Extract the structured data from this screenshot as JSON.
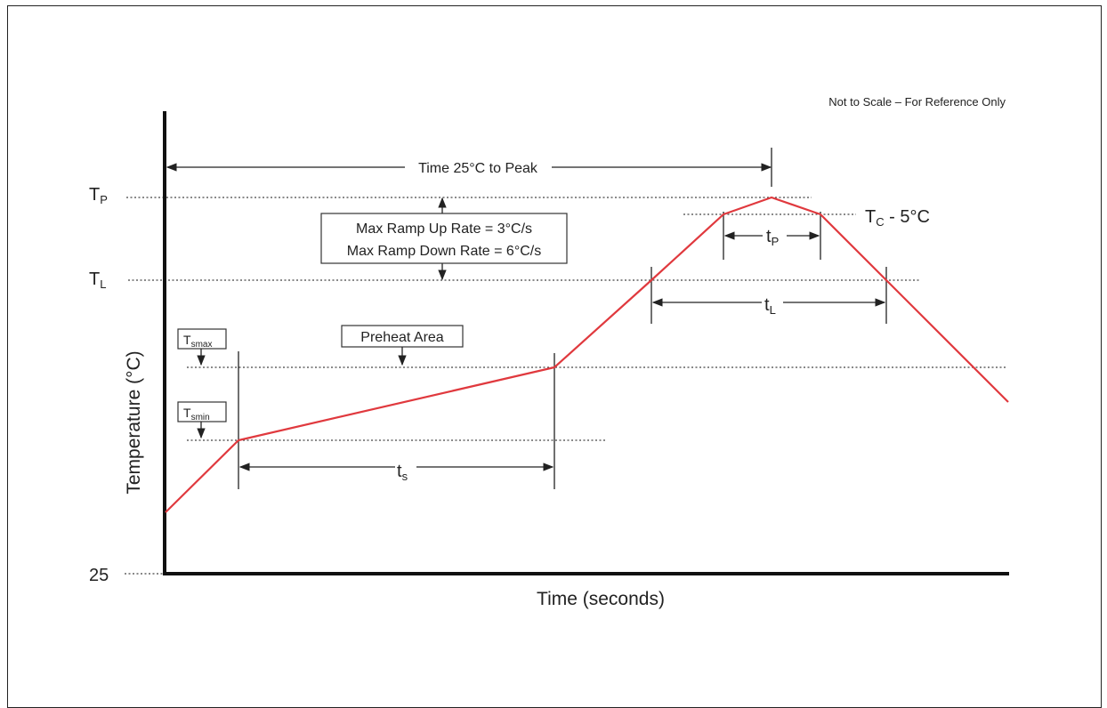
{
  "note": "Not to Scale – For Reference Only",
  "axes": {
    "y_label": "Temperature (°C)",
    "x_label": "Time (seconds)",
    "y_origin": "25"
  },
  "levels": {
    "tp": {
      "main": "T",
      "sub": "P"
    },
    "tl": {
      "main": "T",
      "sub": "L"
    },
    "tc": {
      "main": "T",
      "sub": "C",
      "suffix": " - 5°C"
    },
    "tsmax": {
      "main": "T",
      "sub": "smax"
    },
    "tsmin": {
      "main": "T",
      "sub": "smin"
    }
  },
  "annotations": {
    "time_to_peak": "Time 25°C to Peak",
    "ramp_up": "Max Ramp Up Rate = 3°C/s",
    "ramp_down": "Max Ramp Down Rate = 6°C/s",
    "preheat": "Preheat Area"
  },
  "intervals": {
    "ts": {
      "main": "t",
      "sub": "s"
    },
    "tl": {
      "main": "t",
      "sub": "L"
    },
    "tp": {
      "main": "t",
      "sub": "P"
    }
  },
  "colors": {
    "profile_curve": "#e0393e",
    "axes": "#111111"
  }
}
